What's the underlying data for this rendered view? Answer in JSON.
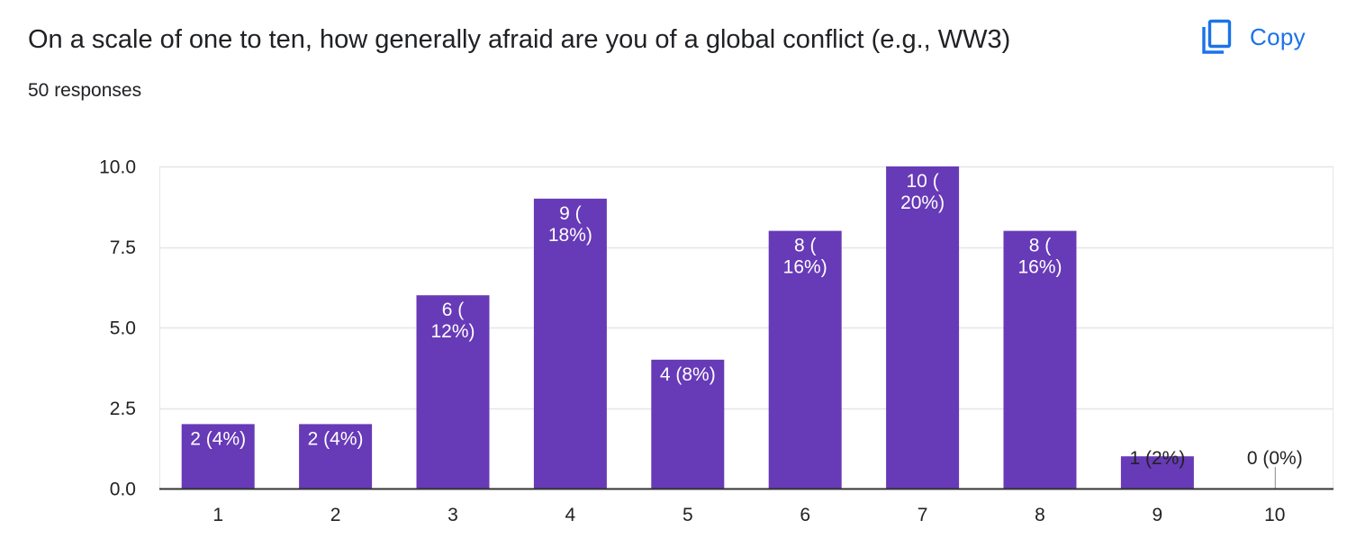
{
  "question": {
    "title": "On a scale of one to ten, how generally afraid are you of a global conflict (e.g., WW3)",
    "responses": "50 responses"
  },
  "toolbar": {
    "copy_label": "Copy",
    "copy_icon": "copy-icon"
  },
  "colors": {
    "bar": "#673ab7",
    "accent": "#1a73e8",
    "grid": "#e6e6e6",
    "axis": "#333333",
    "label_inside": "#ffffff",
    "label_outside": "#222222"
  },
  "chart_data": {
    "type": "bar",
    "categories": [
      "1",
      "2",
      "3",
      "4",
      "5",
      "6",
      "7",
      "8",
      "9",
      "10"
    ],
    "values": [
      2,
      2,
      6,
      9,
      4,
      8,
      10,
      8,
      1,
      0
    ],
    "data_labels": [
      [
        "2 (4%)"
      ],
      [
        "2 (4%)"
      ],
      [
        "6 (",
        "12%)"
      ],
      [
        "9 (",
        "18%)"
      ],
      [
        "4 (8%)"
      ],
      [
        "8 (",
        "16%)"
      ],
      [
        "10 (",
        "20%)"
      ],
      [
        "8 (",
        "16%)"
      ],
      [
        "1 (2%)"
      ],
      [
        "0 (0%)"
      ]
    ],
    "yticks": [
      "0.0",
      "2.5",
      "5.0",
      "7.5",
      "10.0"
    ],
    "ytick_values": [
      0,
      2.5,
      5,
      7.5,
      10
    ],
    "ylim": [
      0,
      10
    ],
    "title": "",
    "xlabel": "",
    "ylabel": "",
    "grid": true,
    "legend": "none"
  }
}
